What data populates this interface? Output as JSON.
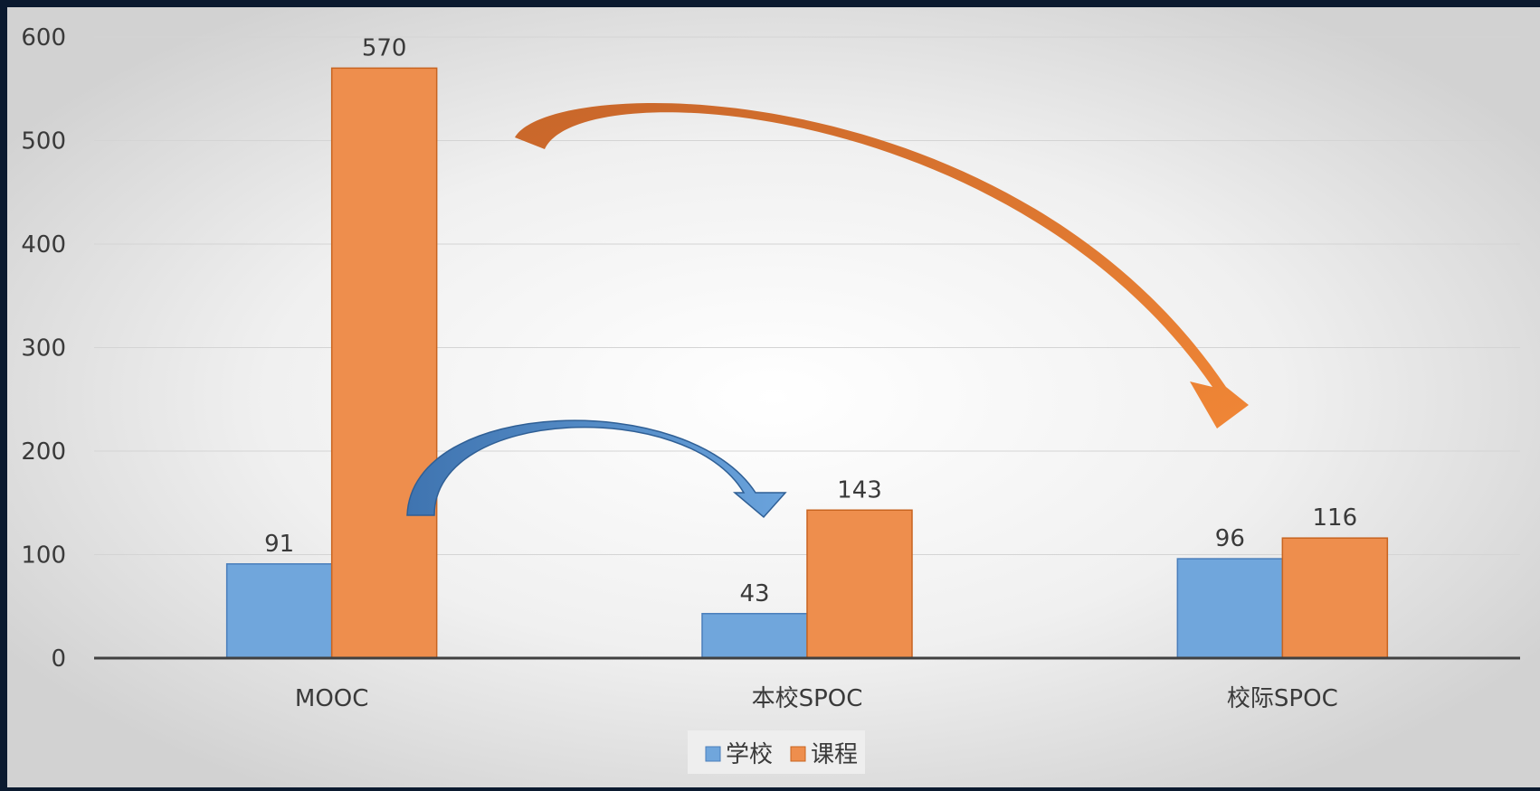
{
  "chart_data": {
    "type": "bar",
    "categories": [
      "MOOC",
      "本校SPOC",
      "校际SPOC"
    ],
    "series": [
      {
        "name": "学校",
        "values": [
          91,
          43,
          96
        ],
        "color": "#70a6dc"
      },
      {
        "name": "课程",
        "values": [
          570,
          143,
          116
        ],
        "color": "#ee8e4d"
      }
    ],
    "ylim": [
      0,
      600
    ],
    "yticks": [
      0,
      100,
      200,
      300,
      400,
      500,
      600
    ],
    "grid": true,
    "legend_position": "bottom-center",
    "data_labels": true,
    "annotations": [
      {
        "type": "curved-arrow",
        "from": "MOOC",
        "to": "本校SPOC",
        "color": "#4a7fbf"
      },
      {
        "type": "curved-arrow",
        "from": "MOOC",
        "to": "校际SPOC",
        "color": "#e8772f"
      }
    ]
  }
}
